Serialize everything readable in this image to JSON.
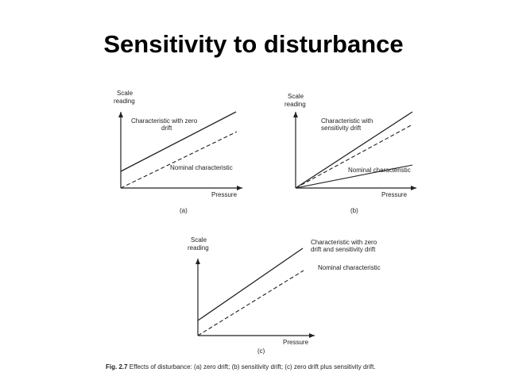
{
  "slide": {
    "title": "Sensitivity to disturbance"
  },
  "panels": {
    "a": {
      "y_label_line1": "Scale",
      "y_label_line2": "reading",
      "x_label": "Pressure",
      "solid_label_line1": "Characteristic with zero",
      "solid_label_line2": "drift",
      "dashed_label": "Nominal characteristic",
      "tag": "(a)"
    },
    "b": {
      "y_label_line1": "Scale",
      "y_label_line2": "reading",
      "x_label": "Pressure",
      "solid_label_line1": "Characteristic with",
      "solid_label_line2": "sensitivity drift",
      "dashed_label": "Nominal characteristic",
      "tag": "(b)"
    },
    "c": {
      "y_label_line1": "Scale",
      "y_label_line2": "reading",
      "x_label": "Pressure",
      "solid_label_line1": "Characteristic with zero",
      "solid_label_line2": "drift and sensitivity drift",
      "dashed_label": "Nominal characteristic",
      "tag": "(c)"
    }
  },
  "caption": {
    "fig_number": "Fig. 2.7",
    "text": "Effects of disturbance: (a) zero drift; (b) sensitivity drift; (c) zero drift plus sensitivity drift."
  }
}
